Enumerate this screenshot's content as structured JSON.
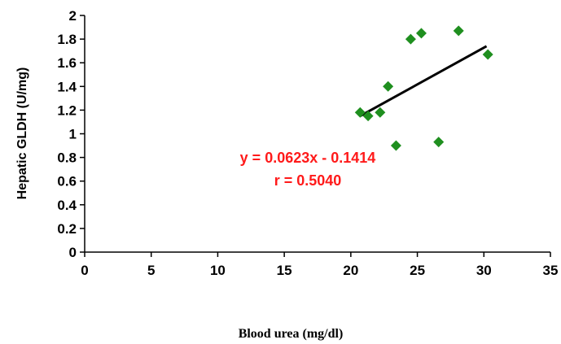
{
  "chart_data": {
    "type": "scatter",
    "title": "",
    "xlabel": "Blood urea (mg/dl)",
    "ylabel": "Hepatic GLDH (U/mg)",
    "xlim": [
      0,
      35
    ],
    "ylim": [
      0,
      2
    ],
    "x_ticks": [
      0,
      5,
      10,
      15,
      20,
      25,
      30,
      35
    ],
    "y_ticks": [
      0,
      0.2,
      0.4,
      0.6,
      0.8,
      1,
      1.2,
      1.4,
      1.6,
      1.8,
      2
    ],
    "x_tick_labels": [
      "0",
      "5",
      "10",
      "15",
      "20",
      "25",
      "30",
      "35"
    ],
    "y_tick_labels": [
      "0",
      "0.2",
      "0.4",
      "0.6",
      "0.8",
      "1",
      "1.2",
      "1.4",
      "1.6",
      "1.8",
      "2"
    ],
    "grid": false,
    "legend": "none",
    "series": [
      {
        "marker": "diamond",
        "color": "#1f8f1f",
        "points": [
          {
            "x": 20.7,
            "y": 1.18
          },
          {
            "x": 21.3,
            "y": 1.15
          },
          {
            "x": 22.2,
            "y": 1.18
          },
          {
            "x": 22.8,
            "y": 1.4
          },
          {
            "x": 23.4,
            "y": 0.9
          },
          {
            "x": 24.5,
            "y": 1.8
          },
          {
            "x": 25.3,
            "y": 1.85
          },
          {
            "x": 26.6,
            "y": 0.93
          },
          {
            "x": 28.1,
            "y": 1.87
          },
          {
            "x": 30.3,
            "y": 1.67
          }
        ]
      }
    ],
    "trendline": {
      "x": [
        20.7,
        30.2
      ],
      "y": [
        1.15,
        1.74
      ],
      "color": "#000000"
    },
    "annotations": {
      "equation": "y = 0.0623x - 0.1414",
      "r_value": "r = 0.5040",
      "color": "#ff1a1a"
    }
  }
}
